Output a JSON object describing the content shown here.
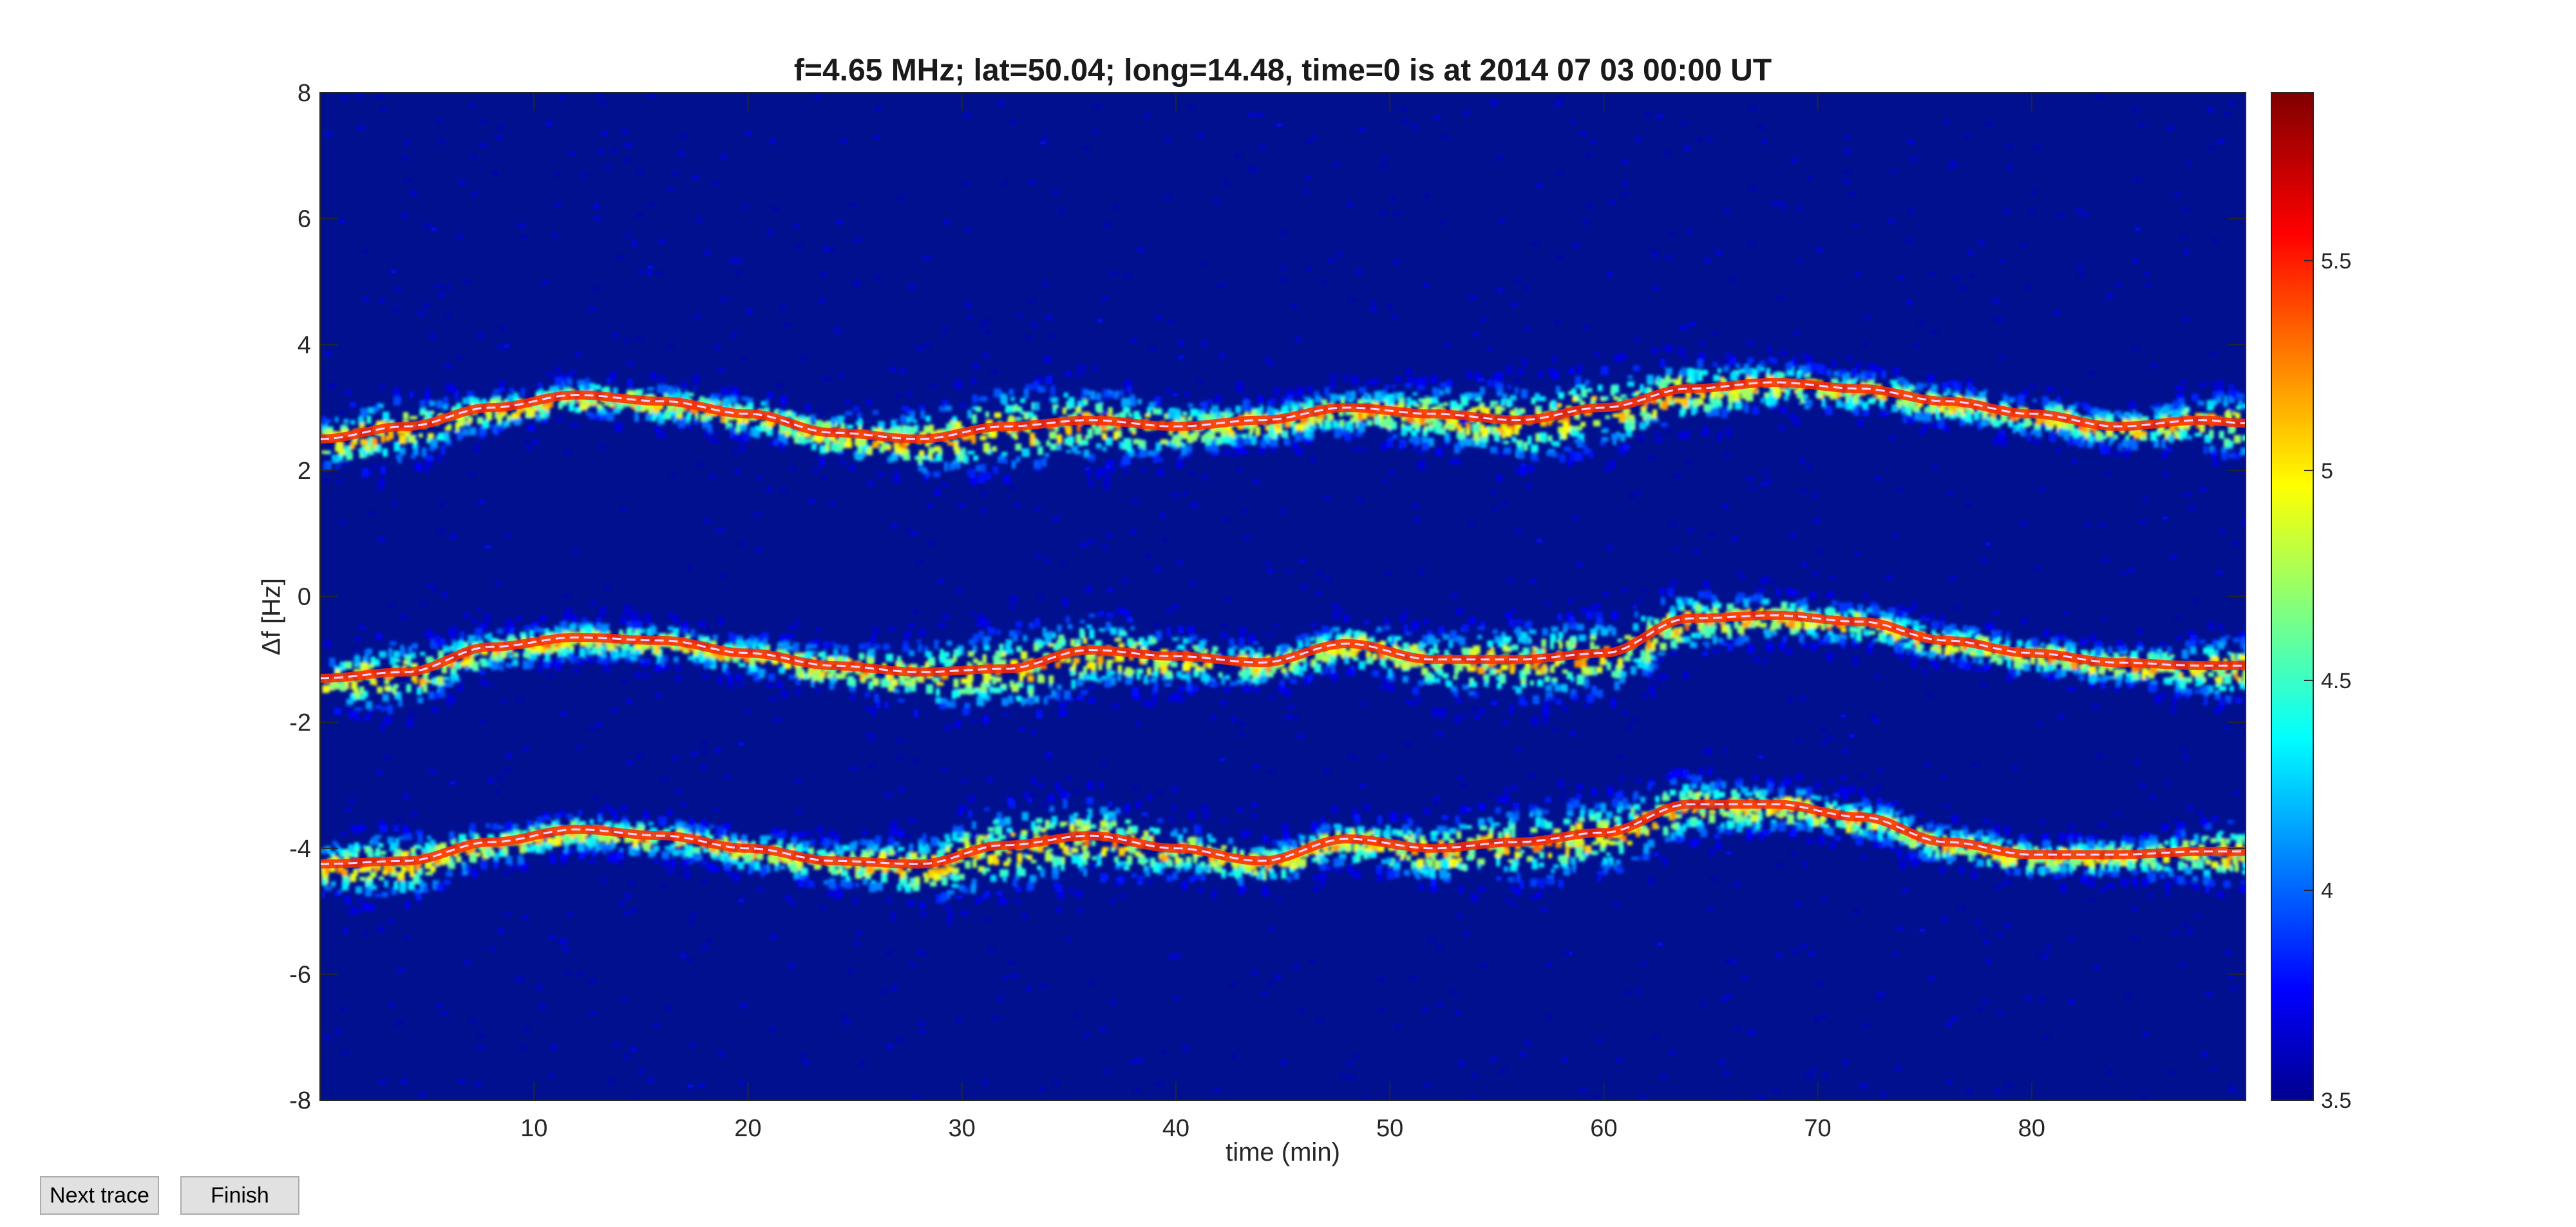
{
  "figure": {
    "buttons": {
      "next_trace": "Next trace",
      "finish": "Finish"
    }
  },
  "chart_data": {
    "type": "heatmap",
    "title": "f=4.65 MHz;  lat=50.04; long=14.48, time=0 is at 2014 07 03 00:00 UT",
    "xlabel": "time (min)",
    "ylabel": "Δf [Hz]",
    "xlim": [
      0,
      90
    ],
    "ylim": [
      -8,
      8
    ],
    "xticks": [
      10,
      20,
      30,
      40,
      50,
      60,
      70,
      80
    ],
    "yticks": [
      -8,
      -6,
      -4,
      -2,
      0,
      2,
      4,
      6,
      8
    ],
    "colorbar": {
      "colormap": "jet",
      "range": [
        3.5,
        5.9
      ],
      "ticks": [
        3.5,
        4,
        4.5,
        5,
        5.5
      ]
    },
    "background_color": "#00108f",
    "grid": false,
    "trace_times": [
      0,
      4,
      8,
      12,
      16,
      20,
      24,
      28,
      32,
      36,
      40,
      44,
      48,
      52,
      56,
      60,
      64,
      68,
      72,
      76,
      80,
      84,
      88,
      90
    ],
    "traces": [
      {
        "name": "",
        "values": [
          2.5,
          2.7,
          3.0,
          3.2,
          3.1,
          2.9,
          2.6,
          2.5,
          2.7,
          2.8,
          2.7,
          2.8,
          3.0,
          2.9,
          2.8,
          3.0,
          3.3,
          3.4,
          3.3,
          3.1,
          2.9,
          2.7,
          2.8,
          2.75
        ]
      },
      {
        "name": "",
        "values": [
          -1.3,
          -1.2,
          -0.8,
          -0.65,
          -0.7,
          -0.9,
          -1.1,
          -1.2,
          -1.15,
          -0.85,
          -0.95,
          -1.05,
          -0.75,
          -1.0,
          -1.0,
          -0.9,
          -0.35,
          -0.3,
          -0.4,
          -0.7,
          -0.9,
          -1.05,
          -1.1,
          -1.1
        ]
      },
      {
        "name": "",
        "values": [
          -4.25,
          -4.2,
          -3.9,
          -3.7,
          -3.8,
          -4.0,
          -4.2,
          -4.25,
          -3.95,
          -3.8,
          -4.0,
          -4.2,
          -3.85,
          -4.0,
          -3.9,
          -3.75,
          -3.3,
          -3.3,
          -3.5,
          -3.9,
          -4.1,
          -4.1,
          -4.05,
          -4.05
        ]
      }
    ]
  }
}
